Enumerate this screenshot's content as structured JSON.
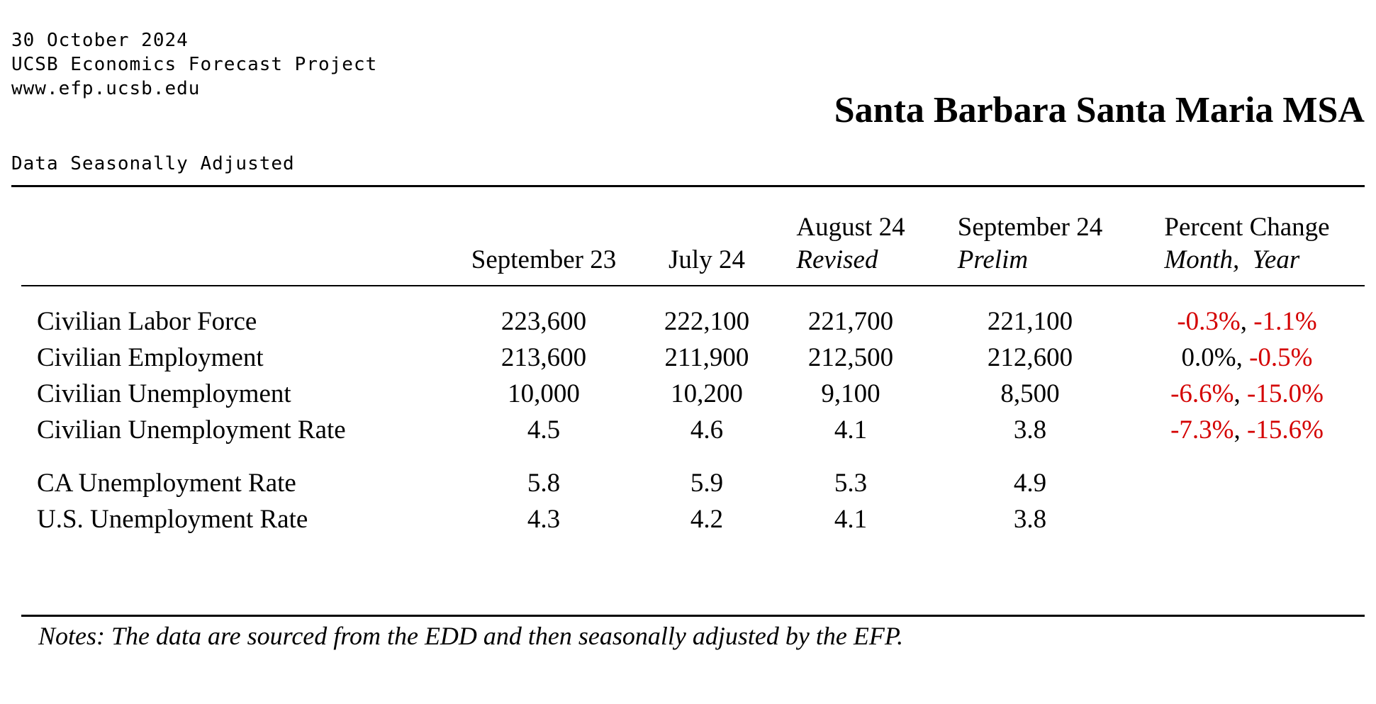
{
  "header": {
    "date": "30 October 2024",
    "org": "UCSB Economics Forecast Project",
    "url": "www.efp.ucsb.edu"
  },
  "title": "Santa Barbara Santa Maria MSA",
  "adjustment_note": "Data Seasonally Adjusted",
  "table": {
    "columns": [
      {
        "label": "September 23",
        "sub": ""
      },
      {
        "label": "July 24",
        "sub": ""
      },
      {
        "label": "August 24",
        "sub": "Revised"
      },
      {
        "label": "September 24",
        "sub": "Prelim"
      },
      {
        "label": "Percent Change",
        "sub": "Month,  Year"
      }
    ],
    "rows": [
      {
        "label": "Civilian Labor Force",
        "values": [
          "223,600",
          "222,100",
          "221,700",
          "221,100"
        ],
        "month_pct": "-0.3%",
        "year_pct": "-1.1%",
        "month_neg": true,
        "year_neg": true
      },
      {
        "label": "Civilian Employment",
        "values": [
          "213,600",
          "211,900",
          "212,500",
          "212,600"
        ],
        "month_pct": "0.0%",
        "year_pct": "-0.5%",
        "month_neg": false,
        "year_neg": true
      },
      {
        "label": "Civilian Unemployment",
        "values": [
          "10,000",
          "10,200",
          "9,100",
          "8,500"
        ],
        "month_pct": "-6.6%",
        "year_pct": "-15.0%",
        "month_neg": true,
        "year_neg": true
      },
      {
        "label": "Civilian Unemployment Rate",
        "values": [
          "4.5",
          "4.6",
          "4.1",
          "3.8"
        ],
        "month_pct": "-7.3%",
        "year_pct": "-15.6%",
        "month_neg": true,
        "year_neg": true
      },
      {
        "label": "CA Unemployment Rate",
        "values": [
          "5.8",
          "5.9",
          "5.3",
          "4.9"
        ]
      },
      {
        "label": "U.S. Unemployment Rate",
        "values": [
          "4.3",
          "4.2",
          "4.1",
          "3.8"
        ]
      }
    ],
    "pct_separator": ", "
  },
  "notes": "Notes:  The data are sourced from the EDD and then seasonally adjusted by the EFP.",
  "colors": {
    "negative": "#d40000",
    "text": "#000000"
  }
}
